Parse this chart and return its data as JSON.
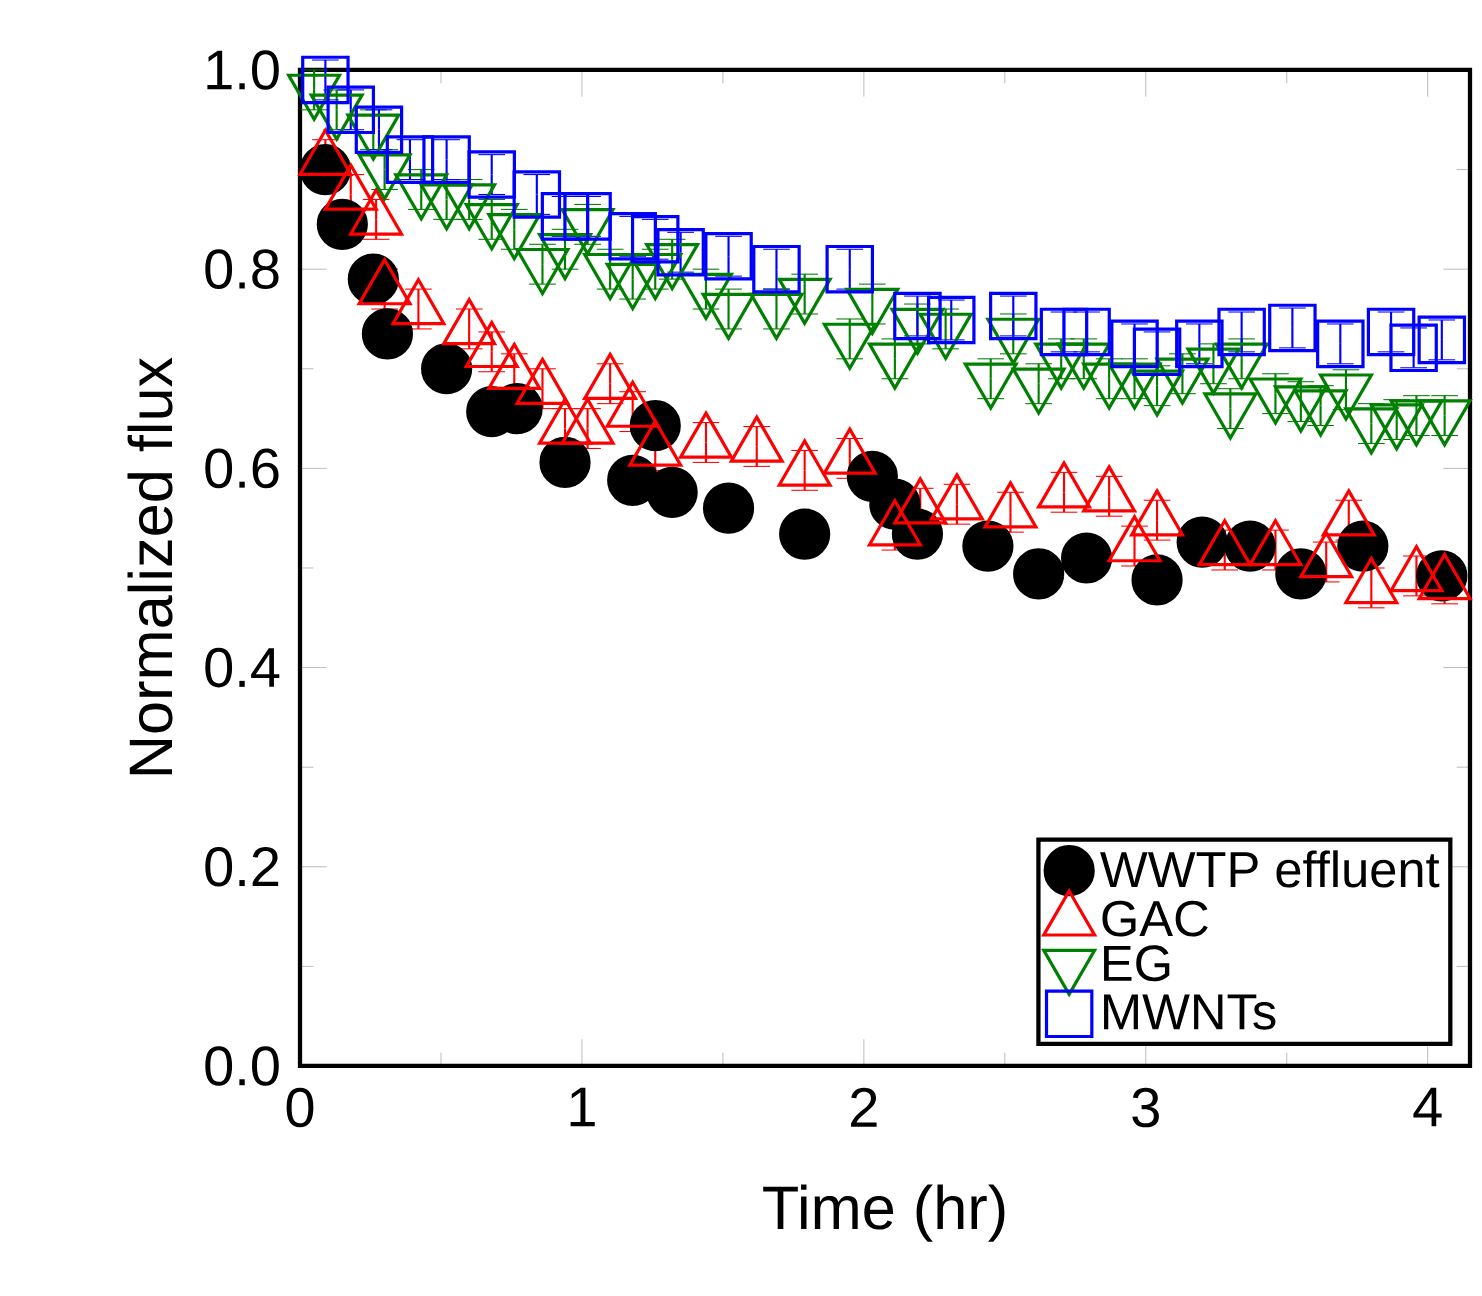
{
  "chart_data": {
    "type": "scatter",
    "xlabel": "Time (hr)",
    "ylabel": "Normalized flux",
    "xlim": [
      0,
      4.15
    ],
    "ylim": [
      0,
      1.0
    ],
    "xticks": [
      0,
      1,
      2,
      3,
      4
    ],
    "yticks": [
      {
        "value": 0,
        "label": "0.0"
      },
      {
        "value": 0.2,
        "label": "0.2"
      },
      {
        "value": 0.4,
        "label": "0.4"
      },
      {
        "value": 0.6,
        "label": "0.6"
      },
      {
        "value": 0.8,
        "label": "0.8"
      },
      {
        "value": 1.0,
        "label": "1.0"
      }
    ],
    "grid": false,
    "legend": "bottom right",
    "series": [
      {
        "name": "WWTP effluent",
        "color": "#000000",
        "marker": "circle",
        "x": [
          0.09,
          0.15,
          0.26,
          0.31,
          0.52,
          0.68,
          0.77,
          0.94,
          1.18,
          1.26,
          1.32,
          1.52,
          1.79,
          2.03,
          2.11,
          2.19,
          2.44,
          2.62,
          2.79,
          3.04,
          3.2,
          3.37,
          3.55,
          3.77,
          4.05
        ],
        "values": [
          0.9,
          0.845,
          0.79,
          0.735,
          0.7,
          0.657,
          0.66,
          0.606,
          0.588,
          0.643,
          0.576,
          0.56,
          0.534,
          0.592,
          0.564,
          0.534,
          0.522,
          0.494,
          0.51,
          0.488,
          0.526,
          0.522,
          0.494,
          0.522,
          0.492
        ],
        "errors": [
          0.02,
          0.02,
          0.02,
          0.02,
          0.02,
          0.02,
          0.02,
          0.02,
          0.02,
          0.02,
          0.02,
          0.02,
          0.02,
          0.02,
          0.02,
          0.02,
          0.02,
          0.02,
          0.02,
          0.02,
          0.02,
          0.02,
          0.02,
          0.02,
          0.02
        ]
      },
      {
        "name": "GAC",
        "color": "#ff0000",
        "marker": "triangle",
        "x": [
          0.09,
          0.18,
          0.27,
          0.3,
          0.42,
          0.6,
          0.68,
          0.76,
          0.86,
          0.94,
          1.02,
          1.1,
          1.18,
          1.26,
          1.44,
          1.62,
          1.79,
          1.95,
          2.11,
          2.2,
          2.33,
          2.52,
          2.71,
          2.87,
          2.96,
          3.04,
          3.28,
          3.46,
          3.64,
          3.72,
          3.8,
          3.96,
          4.06
        ],
        "values": [
          0.91,
          0.875,
          0.85,
          0.78,
          0.76,
          0.74,
          0.717,
          0.695,
          0.68,
          0.64,
          0.64,
          0.685,
          0.657,
          0.618,
          0.626,
          0.622,
          0.598,
          0.61,
          0.538,
          0.56,
          0.564,
          0.556,
          0.576,
          0.572,
          0.522,
          0.548,
          0.518,
          0.518,
          0.506,
          0.548,
          0.48,
          0.492,
          0.484
        ],
        "errors": [
          0.02,
          0.02,
          0.02,
          0.02,
          0.02,
          0.02,
          0.02,
          0.02,
          0.02,
          0.02,
          0.02,
          0.02,
          0.02,
          0.02,
          0.02,
          0.02,
          0.02,
          0.02,
          0.02,
          0.02,
          0.02,
          0.02,
          0.02,
          0.02,
          0.02,
          0.02,
          0.02,
          0.02,
          0.02,
          0.02,
          0.02,
          0.02,
          0.02
        ]
      },
      {
        "name": "EG",
        "color": "#008000",
        "marker": "triangle-down",
        "x": [
          0.05,
          0.13,
          0.26,
          0.3,
          0.43,
          0.52,
          0.6,
          0.68,
          0.76,
          0.86,
          0.94,
          1.02,
          1.1,
          1.18,
          1.26,
          1.32,
          1.44,
          1.52,
          1.69,
          1.79,
          1.95,
          2.03,
          2.11,
          2.19,
          2.29,
          2.45,
          2.53,
          2.62,
          2.7,
          2.78,
          2.87,
          2.96,
          3.04,
          3.13,
          3.24,
          3.3,
          3.34,
          3.46,
          3.55,
          3.62,
          3.71,
          3.8,
          3.89,
          3.96,
          4.06
        ],
        "values": [
          0.98,
          0.96,
          0.94,
          0.9,
          0.88,
          0.87,
          0.87,
          0.85,
          0.84,
          0.805,
          0.82,
          0.845,
          0.8,
          0.79,
          0.8,
          0.81,
          0.78,
          0.76,
          0.76,
          0.775,
          0.73,
          0.765,
          0.71,
          0.745,
          0.74,
          0.69,
          0.735,
          0.685,
          0.71,
          0.71,
          0.69,
          0.69,
          0.683,
          0.695,
          0.705,
          0.66,
          0.71,
          0.675,
          0.667,
          0.663,
          0.679,
          0.645,
          0.649,
          0.653,
          0.653
        ],
        "errors": [
          0.02,
          0.02,
          0.02,
          0.02,
          0.02,
          0.02,
          0.02,
          0.02,
          0.02,
          0.02,
          0.02,
          0.02,
          0.02,
          0.02,
          0.02,
          0.02,
          0.02,
          0.02,
          0.02,
          0.02,
          0.02,
          0.02,
          0.02,
          0.02,
          0.02,
          0.02,
          0.02,
          0.02,
          0.02,
          0.02,
          0.02,
          0.02,
          0.02,
          0.02,
          0.02,
          0.02,
          0.02,
          0.02,
          0.02,
          0.02,
          0.02,
          0.02,
          0.02,
          0.02,
          0.02
        ]
      },
      {
        "name": "MWNTs",
        "color": "#0000ff",
        "marker": "square",
        "x": [
          0.09,
          0.18,
          0.28,
          0.39,
          0.52,
          0.68,
          0.84,
          0.94,
          1.02,
          1.18,
          1.26,
          1.35,
          1.52,
          1.69,
          1.95,
          2.19,
          2.31,
          2.53,
          2.71,
          2.79,
          2.96,
          3.04,
          3.19,
          3.34,
          3.52,
          3.69,
          3.87,
          3.95,
          4.05
        ],
        "values": [
          0.99,
          0.96,
          0.94,
          0.91,
          0.91,
          0.895,
          0.875,
          0.853,
          0.853,
          0.833,
          0.83,
          0.817,
          0.813,
          0.8,
          0.8,
          0.753,
          0.749,
          0.753,
          0.737,
          0.737,
          0.725,
          0.717,
          0.725,
          0.737,
          0.741,
          0.725,
          0.737,
          0.721,
          0.729
        ],
        "errors": [
          0.02,
          0.02,
          0.02,
          0.02,
          0.02,
          0.02,
          0.02,
          0.02,
          0.02,
          0.02,
          0.02,
          0.02,
          0.02,
          0.02,
          0.02,
          0.02,
          0.02,
          0.02,
          0.02,
          0.02,
          0.02,
          0.02,
          0.02,
          0.02,
          0.02,
          0.02,
          0.02,
          0.02,
          0.02
        ]
      }
    ]
  }
}
